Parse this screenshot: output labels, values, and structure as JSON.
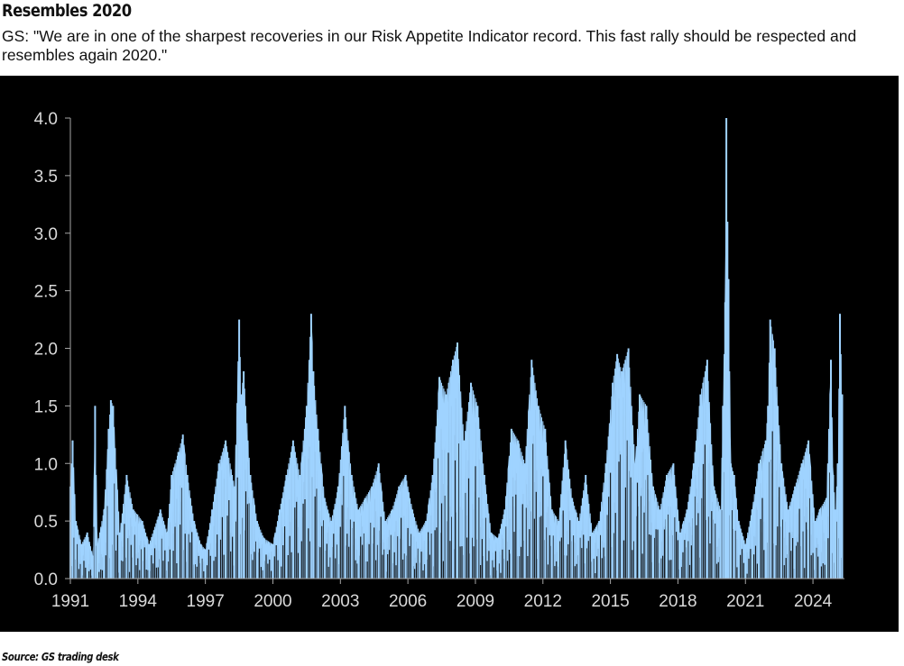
{
  "header": {
    "title": "Resembles 2020",
    "subtitle": "GS: \"We are in one of the sharpest recoveries in our Risk Appetite Indicator record. This fast rally should be respected and resembles again 2020.\""
  },
  "footer": {
    "source": "Source: GS trading desk"
  },
  "colors": {
    "background": "#000000",
    "series": "#9fd3ff",
    "axis": "#a6a6a6",
    "tick_text": "#d9d9d9"
  },
  "chart_data": {
    "type": "area",
    "title": "",
    "xlabel": "",
    "ylabel": "",
    "xlim": [
      1991.0,
      2025.4
    ],
    "ylim": [
      0,
      4.0
    ],
    "grid": false,
    "legend": "none",
    "x_ticks": [
      "1991",
      "1994",
      "1997",
      "2000",
      "2003",
      "2006",
      "2009",
      "2012",
      "2015",
      "2018",
      "2021",
      "2024"
    ],
    "y_ticks": [
      "0.0",
      "0.5",
      "1.0",
      "1.5",
      "2.0",
      "2.5",
      "3.0",
      "3.5",
      "4.0"
    ],
    "series": [
      {
        "x": [
          1991.0,
          1991.1,
          1991.25,
          1991.5,
          1991.75,
          1992.0,
          1992.1,
          1992.2,
          1992.5,
          1992.7,
          1992.8,
          1992.9,
          1993.2,
          1993.5,
          1993.8,
          1994.2,
          1994.5,
          1995.0,
          1995.3,
          1995.5,
          1995.8,
          1996.0,
          1996.2,
          1996.5,
          1996.8,
          1997.0,
          1997.3,
          1997.6,
          1997.9,
          1998.3,
          1998.5,
          1998.6,
          1998.7,
          1999.0,
          1999.3,
          1999.6,
          2000.0,
          2000.3,
          2000.6,
          2000.9,
          2001.2,
          2001.5,
          2001.7,
          2001.8,
          2002.0,
          2002.3,
          2002.6,
          2002.9,
          2003.2,
          2003.5,
          2003.8,
          2004.1,
          2004.4,
          2004.7,
          2005.0,
          2005.3,
          2005.6,
          2005.9,
          2006.2,
          2006.5,
          2006.8,
          2007.1,
          2007.4,
          2007.7,
          2008.0,
          2008.2,
          2008.5,
          2008.8,
          2009.1,
          2009.4,
          2009.7,
          2010.0,
          2010.3,
          2010.6,
          2010.9,
          2011.2,
          2011.5,
          2011.8,
          2012.1,
          2012.4,
          2012.7,
          2013.0,
          2013.3,
          2013.6,
          2013.9,
          2014.2,
          2014.5,
          2014.8,
          2015.1,
          2015.3,
          2015.5,
          2015.8,
          2016.1,
          2016.3,
          2016.6,
          2016.9,
          2017.2,
          2017.5,
          2017.8,
          2018.1,
          2018.4,
          2018.7,
          2019.0,
          2019.3,
          2019.6,
          2019.9,
          2020.0,
          2020.1,
          2020.15,
          2020.2,
          2020.25,
          2020.35,
          2020.5,
          2020.7,
          2021.0,
          2021.3,
          2021.6,
          2021.9,
          2022.0,
          2022.1,
          2022.3,
          2022.6,
          2022.9,
          2023.2,
          2023.5,
          2023.8,
          2024.1,
          2024.3,
          2024.6,
          2024.8,
          2024.9,
          2025.0,
          2025.1,
          2025.2,
          2025.3
        ],
        "values": [
          0.8,
          1.2,
          0.5,
          0.3,
          0.4,
          0.2,
          1.5,
          0.3,
          0.6,
          1.3,
          1.55,
          1.5,
          0.4,
          0.9,
          0.6,
          0.5,
          0.3,
          0.6,
          0.4,
          0.9,
          1.1,
          1.25,
          0.9,
          0.5,
          0.3,
          0.25,
          0.6,
          1.0,
          1.2,
          0.8,
          2.25,
          1.6,
          1.8,
          0.9,
          0.5,
          0.35,
          0.3,
          0.6,
          0.9,
          1.2,
          0.9,
          1.5,
          2.3,
          1.8,
          1.3,
          0.7,
          0.5,
          0.8,
          1.5,
          0.9,
          0.6,
          0.7,
          0.8,
          1.0,
          0.5,
          0.6,
          0.8,
          0.9,
          0.6,
          0.4,
          0.5,
          0.9,
          1.75,
          1.6,
          1.9,
          2.05,
          1.2,
          1.7,
          1.5,
          0.9,
          0.4,
          0.35,
          0.6,
          1.3,
          1.2,
          1.0,
          1.9,
          1.5,
          1.3,
          0.6,
          0.5,
          1.2,
          0.7,
          0.5,
          0.9,
          0.4,
          0.5,
          1.0,
          1.7,
          1.95,
          1.8,
          2.0,
          1.0,
          1.6,
          1.5,
          0.8,
          0.6,
          0.9,
          1.0,
          0.4,
          0.6,
          1.0,
          1.6,
          1.9,
          0.8,
          0.6,
          1.5,
          2.4,
          4.0,
          3.1,
          2.6,
          1.0,
          0.9,
          0.5,
          0.3,
          0.6,
          1.0,
          1.2,
          1.5,
          2.25,
          2.0,
          1.0,
          0.6,
          0.8,
          1.0,
          1.2,
          0.5,
          0.6,
          0.7,
          1.9,
          0.9,
          0.6,
          1.0,
          2.3,
          1.6
        ]
      }
    ]
  }
}
